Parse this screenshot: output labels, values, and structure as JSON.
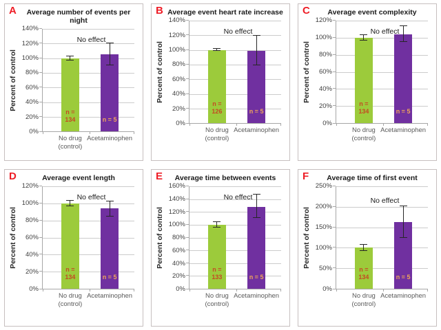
{
  "figure": {
    "description": "Six-panel bar chart figure comparing Acetaminophen vs no-drug control, percent of control",
    "annotation_label": "No effect"
  },
  "colors": {
    "panel_letter": "#ee1c25",
    "green_bar": "#9ccb3b",
    "purple_bar": "#7030a0",
    "n_label_on_green": "#c44a22",
    "n_label_on_purple": "#f0a55a",
    "gridline": "#cbcbcb",
    "axis_line": "#a6a6a6",
    "tick_text": "#3f3f3f",
    "category_text": "#595959",
    "panel_border": "#c6bfbf"
  },
  "chart_data": [
    {
      "type": "bar",
      "letter": "A",
      "title": "Average number of events per night",
      "ylabel": "Percent of control",
      "annotation": "No effect",
      "ylim": [
        0,
        140
      ],
      "ystep": 20,
      "categories": [
        "No drug (control)",
        "Acetaminophen"
      ],
      "category_lines": [
        [
          "No drug",
          "(control)"
        ],
        [
          "Acetaminophen"
        ]
      ],
      "series": [
        {
          "name": "No drug (control)",
          "value": 100,
          "error_low": 97,
          "error_high": 103,
          "n_label_lines": [
            "n =",
            "134"
          ],
          "color": "#9ccb3b",
          "n_color": "#c44a22"
        },
        {
          "name": "Acetaminophen",
          "value": 105,
          "error_low": 90,
          "error_high": 120,
          "n_label_lines": [
            "n = 5"
          ],
          "color": "#7030a0",
          "n_color": "#f0a55a"
        }
      ]
    },
    {
      "type": "bar",
      "letter": "B",
      "title": "Average event heart rate increase",
      "ylabel": "Percent of control",
      "annotation": "No effect",
      "ylim": [
        0,
        140
      ],
      "ystep": 20,
      "categories": [
        "No drug (control)",
        "Acetaminophen"
      ],
      "category_lines": [
        [
          "No drug",
          "(control)"
        ],
        [
          "Acetaminophen"
        ]
      ],
      "series": [
        {
          "name": "No drug (control)",
          "value": 100,
          "error_low": 98.5,
          "error_high": 101.5,
          "n_label_lines": [
            "n =",
            "126"
          ],
          "color": "#9ccb3b",
          "n_color": "#c44a22"
        },
        {
          "name": "Acetaminophen",
          "value": 99,
          "error_low": 79,
          "error_high": 119,
          "n_label_lines": [
            "n = 5"
          ],
          "color": "#7030a0",
          "n_color": "#f0a55a"
        }
      ]
    },
    {
      "type": "bar",
      "letter": "C",
      "title": "Average event complexity",
      "ylabel": "Percent of control",
      "annotation": "No effect",
      "ylim": [
        0,
        120
      ],
      "ystep": 20,
      "categories": [
        "No drug (control)",
        "Acetaminophen"
      ],
      "category_lines": [
        [
          "No drug",
          "(control)"
        ],
        [
          "Acetaminophen"
        ]
      ],
      "series": [
        {
          "name": "No drug (control)",
          "value": 100,
          "error_low": 97,
          "error_high": 103,
          "n_label_lines": [
            "n =",
            "134"
          ],
          "color": "#9ccb3b",
          "n_color": "#c44a22"
        },
        {
          "name": "Acetaminophen",
          "value": 104,
          "error_low": 95,
          "error_high": 114,
          "n_label_lines": [
            "n = 5"
          ],
          "color": "#7030a0",
          "n_color": "#f0a55a"
        }
      ]
    },
    {
      "type": "bar",
      "letter": "D",
      "title": "Average event length",
      "ylabel": "Percent of control",
      "annotation": "No effect",
      "ylim": [
        0,
        120
      ],
      "ystep": 20,
      "categories": [
        "No drug (control)",
        "Acetaminophen"
      ],
      "category_lines": [
        [
          "No drug",
          "(control)"
        ],
        [
          "Acetaminophen"
        ]
      ],
      "series": [
        {
          "name": "No drug (control)",
          "value": 100,
          "error_low": 97,
          "error_high": 103,
          "n_label_lines": [
            "n =",
            "134"
          ],
          "color": "#9ccb3b",
          "n_color": "#c44a22"
        },
        {
          "name": "Acetaminophen",
          "value": 94,
          "error_low": 85,
          "error_high": 102,
          "n_label_lines": [
            "n = 5"
          ],
          "color": "#7030a0",
          "n_color": "#f0a55a"
        }
      ]
    },
    {
      "type": "bar",
      "letter": "E",
      "title": "Average time between events",
      "ylabel": "Percent of control",
      "annotation": "No effect",
      "ylim": [
        0,
        160
      ],
      "ystep": 20,
      "categories": [
        "No drug (control)",
        "Acetaminophen"
      ],
      "category_lines": [
        [
          "No drug",
          "(control)"
        ],
        [
          "Acetaminophen"
        ]
      ],
      "series": [
        {
          "name": "No drug (control)",
          "value": 100,
          "error_low": 96,
          "error_high": 104,
          "n_label_lines": [
            "n =",
            "133"
          ],
          "color": "#9ccb3b",
          "n_color": "#c44a22"
        },
        {
          "name": "Acetaminophen",
          "value": 128,
          "error_low": 111,
          "error_high": 147,
          "n_label_lines": [
            "n = 5"
          ],
          "color": "#7030a0",
          "n_color": "#f0a55a"
        }
      ]
    },
    {
      "type": "bar",
      "letter": "F",
      "title": "Average time of first event",
      "ylabel": "Percent of control",
      "annotation": "No effect",
      "ylim": [
        0,
        250
      ],
      "ystep": 50,
      "categories": [
        "No drug (control)",
        "Acetaminophen"
      ],
      "category_lines": [
        [
          "No drug",
          "(control)"
        ],
        [
          "Acetaminophen"
        ]
      ],
      "series": [
        {
          "name": "No drug (control)",
          "value": 100,
          "error_low": 93,
          "error_high": 108,
          "n_label_lines": [
            "n =",
            "134"
          ],
          "color": "#9ccb3b",
          "n_color": "#c44a22"
        },
        {
          "name": "Acetaminophen",
          "value": 163,
          "error_low": 125,
          "error_high": 202,
          "n_label_lines": [
            "n = 5"
          ],
          "color": "#7030a0",
          "n_color": "#f0a55a"
        }
      ]
    }
  ]
}
